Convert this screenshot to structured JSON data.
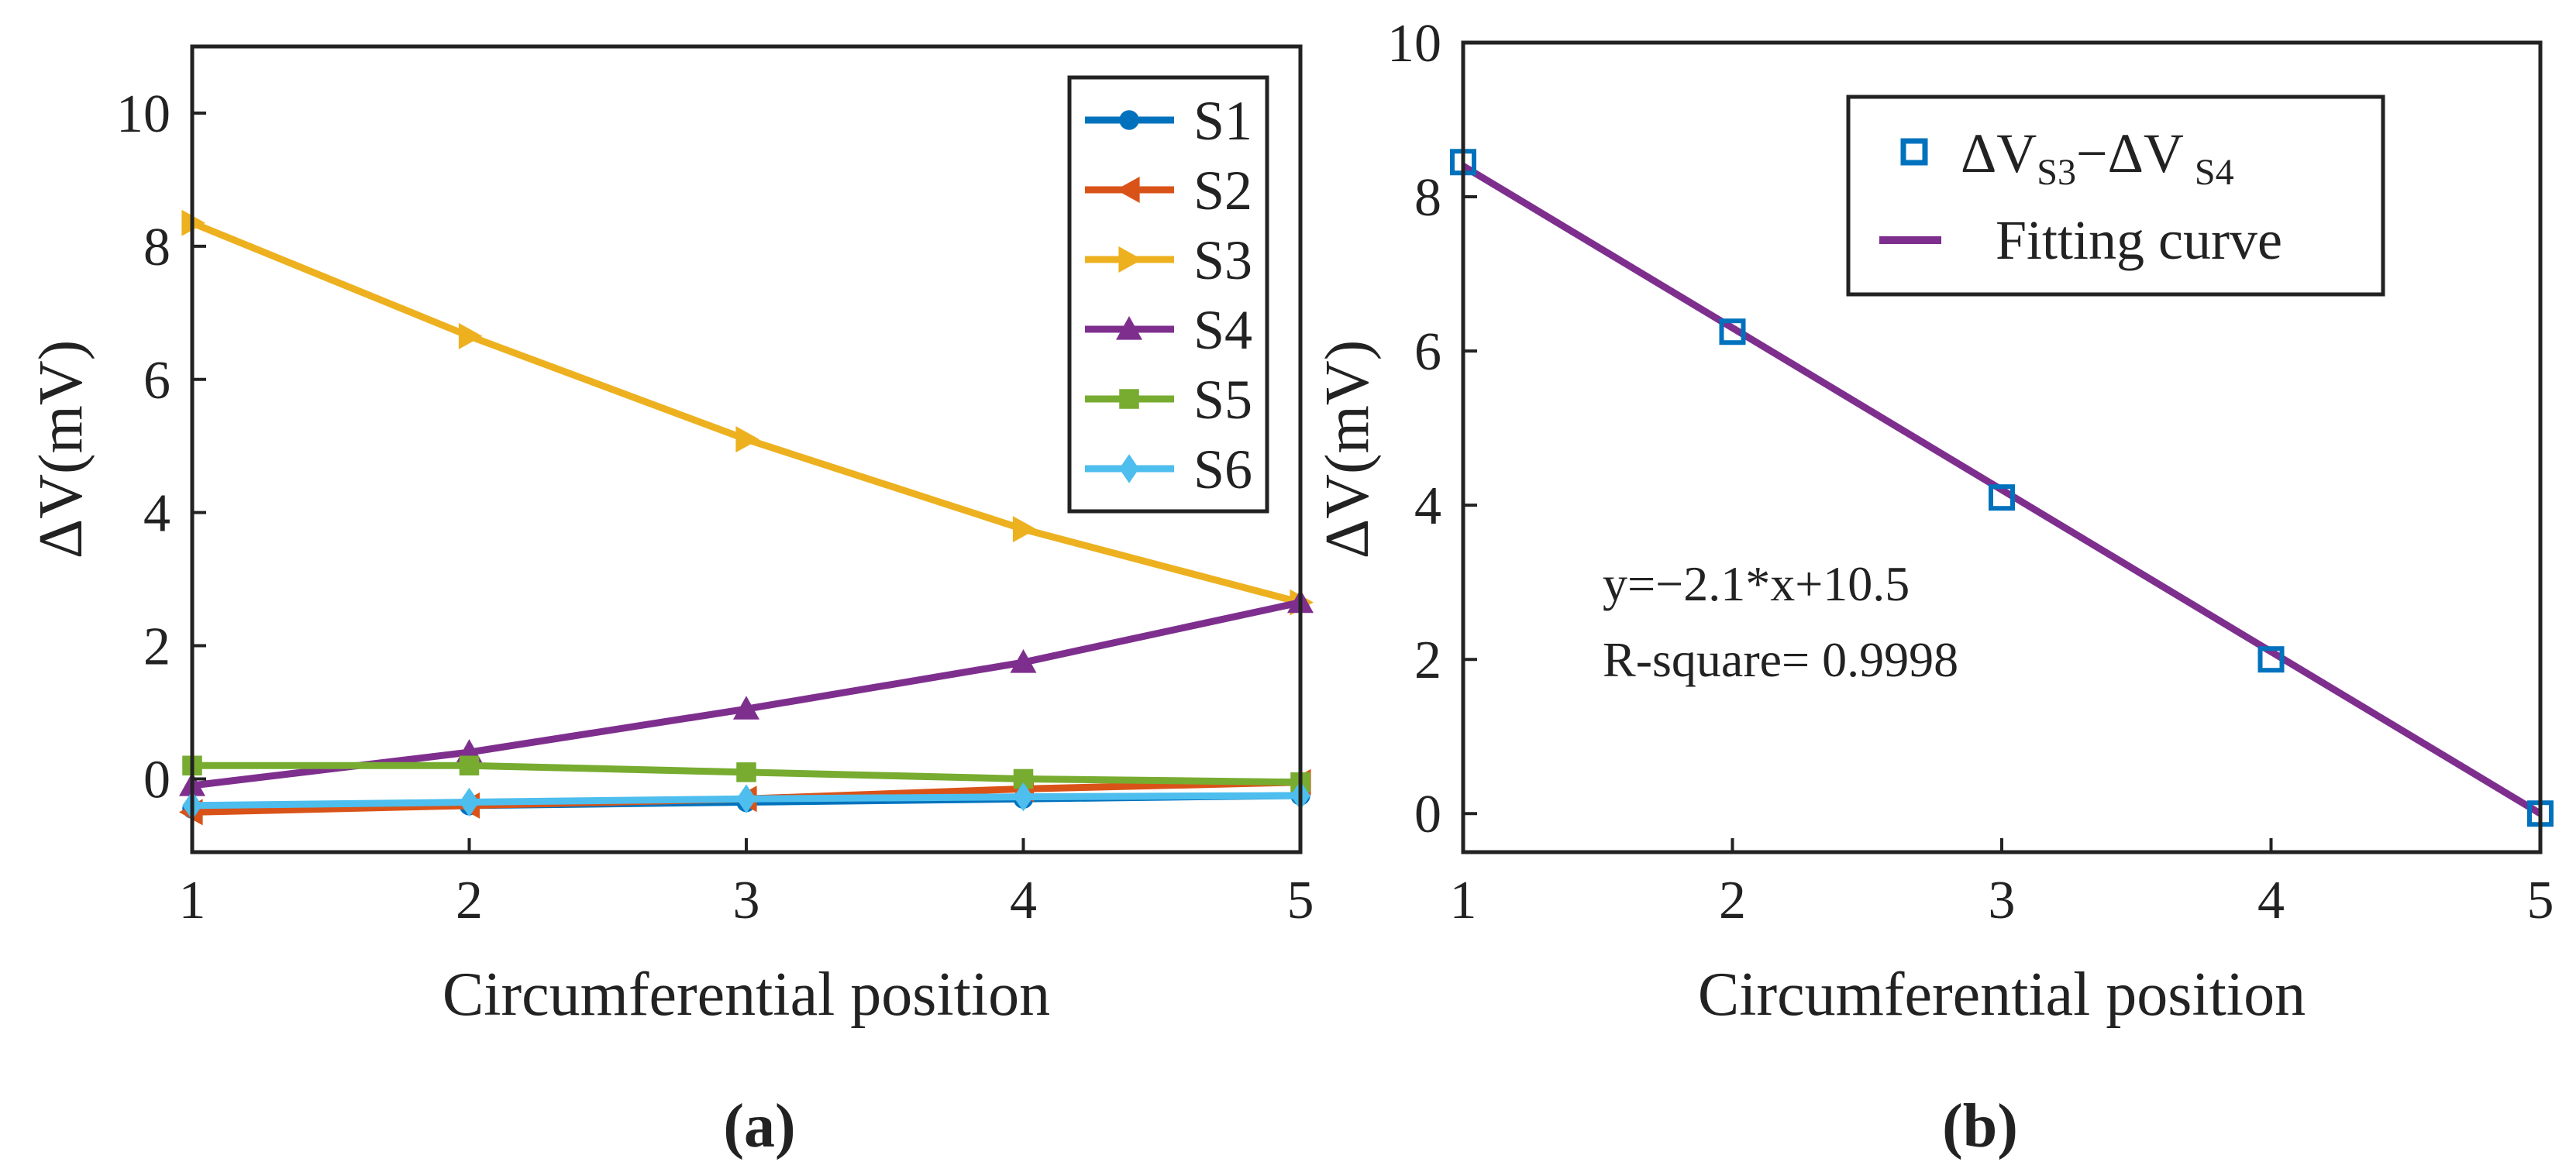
{
  "colors": {
    "axis": "#222222",
    "S1": "#0072BD",
    "S2": "#D95319",
    "S3": "#EDB120",
    "S4": "#7E2F8E",
    "S5": "#77AC30",
    "S6": "#4DBEEE",
    "fit": "#7E2F8E",
    "points_b": "#0072BD"
  },
  "chart_data": [
    {
      "type": "line",
      "caption": "(a)",
      "xlabel": "Circumferential position",
      "ylabel": "ΔV(mV)",
      "xlim": [
        1,
        5
      ],
      "ylim": [
        -1.1,
        11
      ],
      "xticks": [
        1,
        2,
        3,
        4,
        5
      ],
      "yticks": [
        0,
        2,
        4,
        6,
        8,
        10
      ],
      "grid": false,
      "legend_position": "top-right",
      "x": [
        1,
        2,
        3,
        4,
        5
      ],
      "series": [
        {
          "name": "S1",
          "marker": "circle",
          "color_key": "S1",
          "values": [
            -0.45,
            -0.4,
            -0.35,
            -0.3,
            -0.25
          ]
        },
        {
          "name": "S2",
          "marker": "triangle-left",
          "color_key": "S2",
          "values": [
            -0.5,
            -0.4,
            -0.3,
            -0.15,
            -0.05
          ]
        },
        {
          "name": "S3",
          "marker": "triangle-right",
          "color_key": "S3",
          "values": [
            8.35,
            6.65,
            5.1,
            3.75,
            2.65
          ]
        },
        {
          "name": "S4",
          "marker": "triangle-up",
          "color_key": "S4",
          "values": [
            -0.1,
            0.4,
            1.05,
            1.75,
            2.65
          ]
        },
        {
          "name": "S5",
          "marker": "square",
          "color_key": "S5",
          "values": [
            0.2,
            0.2,
            0.1,
            0.0,
            -0.05
          ]
        },
        {
          "name": "S6",
          "marker": "diamond",
          "color_key": "S6",
          "values": [
            -0.4,
            -0.35,
            -0.3,
            -0.27,
            -0.25
          ]
        }
      ]
    },
    {
      "type": "scatter",
      "caption": "(b)",
      "xlabel": "Circumferential position",
      "ylabel": "ΔV(mV)",
      "xlim": [
        1,
        5
      ],
      "ylim": [
        -0.5,
        10
      ],
      "xticks": [
        1,
        2,
        3,
        4,
        5
      ],
      "yticks": [
        0,
        2,
        4,
        6,
        8,
        10
      ],
      "grid": false,
      "legend_position": "top-right",
      "legend": {
        "points_main": "ΔV",
        "points_sub1": "S3",
        "points_dash": "−ΔV",
        "points_sub2": "S4",
        "fit": "Fitting curve"
      },
      "points": {
        "x": [
          1,
          2,
          3,
          4,
          5
        ],
        "y": [
          8.45,
          6.25,
          4.1,
          2.0,
          0.0
        ]
      },
      "fit": {
        "slope": -2.1,
        "intercept": 10.5,
        "x_range": [
          1,
          5
        ]
      },
      "annotations": [
        "y=−2.1*x+10.5",
        "R-square= 0.9998"
      ]
    }
  ]
}
